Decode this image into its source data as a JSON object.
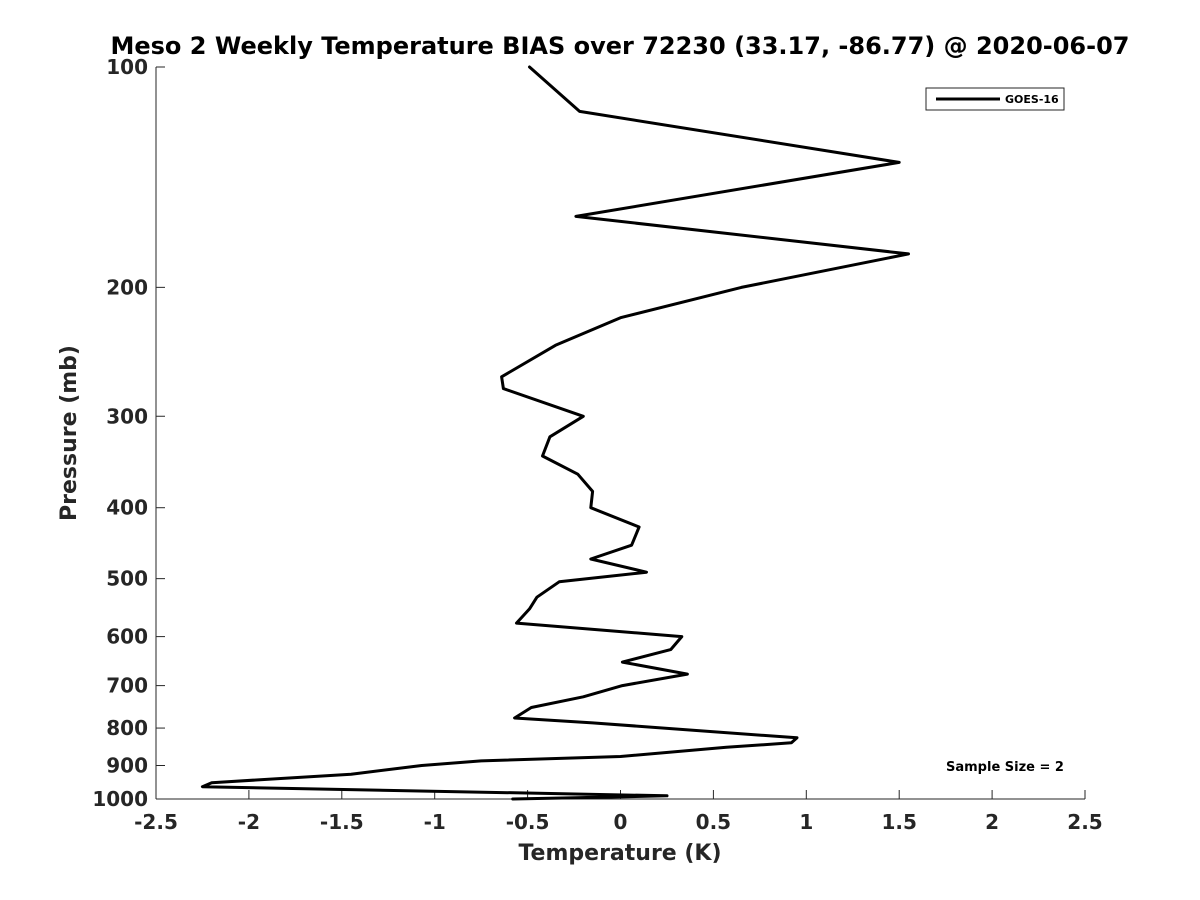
{
  "chart_data": {
    "type": "line",
    "title": "Meso 2 Weekly Temperature BIAS over 72230 (33.17, -86.77) @ 2020-06-07",
    "xlabel": "Temperature (K)",
    "ylabel": "Pressure (mb)",
    "xlim": [
      -2.5,
      2.5
    ],
    "ylim": [
      100,
      1000
    ],
    "y_scale": "log",
    "y_direction": "reversed",
    "x_ticks": [
      "-2.5",
      "-2",
      "-1.5",
      "-1",
      "-0.5",
      "0",
      "0.5",
      "1",
      "1.5",
      "2",
      "2.5"
    ],
    "y_ticks": [
      "100",
      "200",
      "300",
      "400",
      "500",
      "600",
      "700",
      "800",
      "900",
      "1000"
    ],
    "grid": false,
    "legend_position": "top-right",
    "annotation": "Sample Size = 2",
    "colors": {
      "series": "#000000",
      "axis": "#262626"
    },
    "series": [
      {
        "name": "GOES-16",
        "points": [
          [
            -0.49,
            100
          ],
          [
            -0.22,
            115
          ],
          [
            1.5,
            135
          ],
          [
            -0.24,
            160
          ],
          [
            1.55,
            180
          ],
          [
            0.65,
            200
          ],
          [
            0.0,
            220
          ],
          [
            -0.35,
            240
          ],
          [
            -0.64,
            265
          ],
          [
            -0.63,
            275
          ],
          [
            -0.2,
            300
          ],
          [
            -0.38,
            320
          ],
          [
            -0.42,
            340
          ],
          [
            -0.23,
            360
          ],
          [
            -0.15,
            380
          ],
          [
            -0.16,
            400
          ],
          [
            0.1,
            425
          ],
          [
            0.06,
            450
          ],
          [
            -0.16,
            470
          ],
          [
            0.14,
            490
          ],
          [
            -0.33,
            505
          ],
          [
            -0.45,
            530
          ],
          [
            -0.49,
            550
          ],
          [
            -0.56,
            575
          ],
          [
            0.33,
            600
          ],
          [
            0.27,
            625
          ],
          [
            0.01,
            650
          ],
          [
            0.36,
            675
          ],
          [
            0.01,
            700
          ],
          [
            -0.2,
            725
          ],
          [
            -0.48,
            750
          ],
          [
            -0.57,
            775
          ],
          [
            -0.15,
            787
          ],
          [
            0.95,
            825
          ],
          [
            0.92,
            838
          ],
          [
            0.57,
            850
          ],
          [
            0.0,
            875
          ],
          [
            -0.75,
            887
          ],
          [
            -1.07,
            900
          ],
          [
            -1.45,
            925
          ],
          [
            -2.2,
            950
          ],
          [
            -2.25,
            962
          ],
          [
            0.25,
            990
          ],
          [
            -0.58,
            1000
          ]
        ]
      }
    ]
  }
}
